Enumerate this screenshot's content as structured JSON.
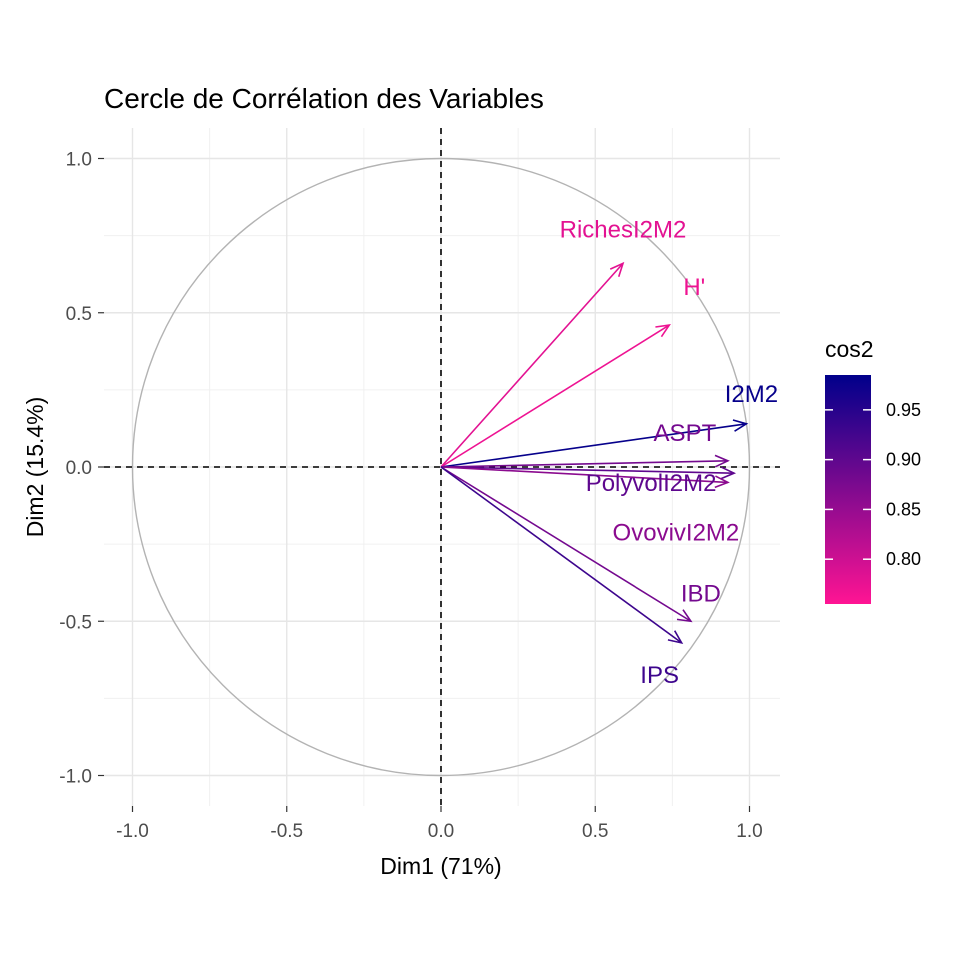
{
  "chart_data": {
    "type": "scatter",
    "subtype": "pca-correlation-circle",
    "title": "Cercle de Corrélation des Variables",
    "xlabel": "Dim1 (71%)",
    "ylabel": "Dim2 (15.4%)",
    "xlim": [
      -1.1,
      1.1
    ],
    "ylim": [
      -1.1,
      1.1
    ],
    "x_ticks": [
      -1.0,
      -0.5,
      0.0,
      0.5,
      1.0
    ],
    "y_ticks": [
      -1.0,
      -0.5,
      0.0,
      0.5,
      1.0
    ],
    "x_tick_labels": [
      "-1.0",
      "-0.5",
      "0.0",
      "0.5",
      "1.0"
    ],
    "y_tick_labels": [
      "-1.0",
      "-0.5",
      "0.0",
      "0.5",
      "1.0"
    ],
    "grid": true,
    "legend": {
      "title": "cos2",
      "position": "right",
      "low_color": "#FF1493",
      "high_color": "#00008B",
      "range": [
        0.755,
        0.985
      ],
      "ticks": [
        0.8,
        0.85,
        0.9,
        0.95
      ],
      "tick_labels": [
        "0.80",
        "0.85",
        "0.90",
        "0.95"
      ]
    },
    "variables": [
      {
        "name": "RichesI2M2",
        "x": 0.59,
        "y": 0.66,
        "cos2": 0.78
      },
      {
        "name": "H'",
        "x": 0.74,
        "y": 0.46,
        "cos2": 0.77
      },
      {
        "name": "I2M2",
        "x": 0.99,
        "y": 0.14,
        "cos2": 0.98
      },
      {
        "name": "ASPT",
        "x": 0.93,
        "y": 0.02,
        "cos2": 0.88
      },
      {
        "name": "PolyvolI2M2",
        "x": 0.95,
        "y": -0.02,
        "cos2": 0.9
      },
      {
        "name": "OvovivI2M2",
        "x": 0.93,
        "y": -0.05,
        "cos2": 0.86
      },
      {
        "name": "IBD",
        "x": 0.81,
        "y": -0.5,
        "cos2": 0.88
      },
      {
        "name": "IPS",
        "x": 0.78,
        "y": -0.57,
        "cos2": 0.93
      }
    ]
  }
}
